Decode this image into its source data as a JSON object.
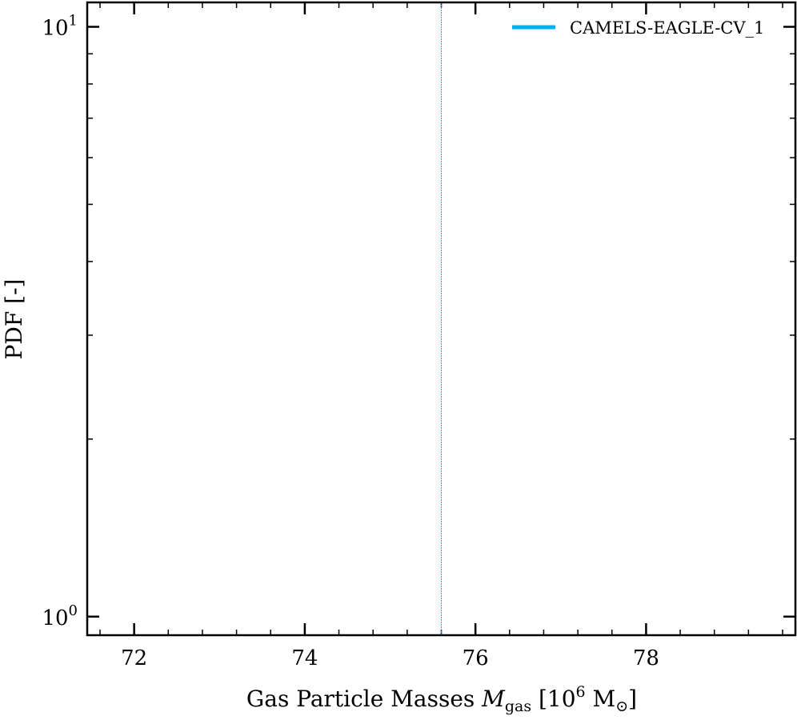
{
  "chart_data": {
    "type": "line",
    "title": "",
    "xlabel_prefix": "Gas Particle Masses ",
    "xlabel_var": "M",
    "xlabel_sub": "gas",
    "xlabel_unit_open": " [10",
    "xlabel_unit_exp": "6",
    "xlabel_unit_mid": " M",
    "xlabel_unit_sym": "⊙",
    "xlabel_unit_close": "]",
    "ylabel": "PDF [-]",
    "xlim": [
      71.45,
      79.75
    ],
    "ylim_log": [
      0.93,
      11.0
    ],
    "yscale": "log",
    "x_ticks": [
      {
        "value": 72,
        "label": "72"
      },
      {
        "value": 74,
        "label": "74"
      },
      {
        "value": 76,
        "label": "76"
      },
      {
        "value": 78,
        "label": "78"
      }
    ],
    "y_ticks": [
      {
        "value": 1,
        "base": "10",
        "exp": "0"
      },
      {
        "value": 10,
        "base": "10",
        "exp": "1"
      }
    ],
    "series": [
      {
        "name": "CAMELS-EAGLE-CV_1",
        "color": "#00b0f0",
        "x": [
          75.6,
          75.6
        ],
        "y": [
          0.93,
          11.0
        ]
      }
    ],
    "legend": {
      "position": "top-right"
    },
    "grid": false
  }
}
